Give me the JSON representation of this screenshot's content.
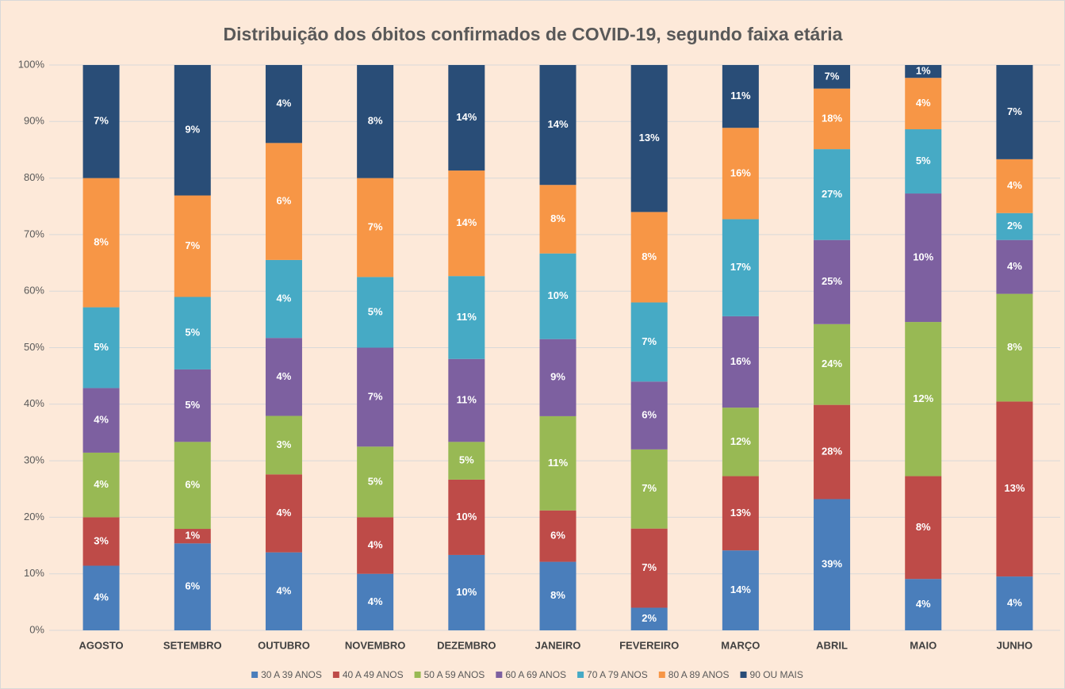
{
  "chart_data": {
    "type": "bar",
    "stacked": "percent",
    "title": "Distribuição dos óbitos confirmados de COVID-19, segundo faixa etária",
    "categories": [
      "AGOSTO",
      "SETEMBRO",
      "OUTUBRO",
      "NOVEMBRO",
      "DEZEMBRO",
      "JANEIRO",
      "FEVEREIRO",
      "MARÇO",
      "ABRIL",
      "MAIO",
      "JUNHO"
    ],
    "series": [
      {
        "name": "30 A 39 ANOS",
        "color": "#4a7ebb",
        "values": [
          4,
          6,
          4,
          4,
          10,
          8,
          2,
          14,
          39,
          4,
          4
        ],
        "value_labels": [
          "4%",
          "6%",
          "4%",
          "4%",
          "10%",
          "8%",
          "2%",
          "14%",
          "39%",
          "4%",
          "4%"
        ]
      },
      {
        "name": "40 A 49 ANOS",
        "color": "#be4b48",
        "values": [
          3,
          1,
          4,
          4,
          10,
          6,
          7,
          13,
          28,
          8,
          13
        ],
        "value_labels": [
          "3%",
          "1%",
          "4%",
          "4%",
          "10%",
          "6%",
          "7%",
          "13%",
          "28%",
          "8%",
          "13%"
        ]
      },
      {
        "name": "50 A 59 ANOS",
        "color": "#98b954",
        "values": [
          4,
          6,
          3,
          5,
          5,
          11,
          7,
          12,
          24,
          12,
          8
        ],
        "value_labels": [
          "4%",
          "6%",
          "3%",
          "5%",
          "5%",
          "11%",
          "7%",
          "12%",
          "24%",
          "12%",
          "8%"
        ]
      },
      {
        "name": "60 A 69 ANOS",
        "color": "#7d60a0",
        "values": [
          4,
          5,
          4,
          7,
          11,
          9,
          6,
          16,
          25,
          10,
          4
        ],
        "value_labels": [
          "4%",
          "5%",
          "4%",
          "7%",
          "11%",
          "9%",
          "6%",
          "16%",
          "25%",
          "10%",
          "4%"
        ]
      },
      {
        "name": "70 A 79 ANOS",
        "color": "#46aac5",
        "values": [
          5,
          5,
          4,
          5,
          11,
          10,
          7,
          17,
          27,
          5,
          2
        ],
        "value_labels": [
          "5%",
          "5%",
          "4%",
          "5%",
          "11%",
          "10%",
          "7%",
          "17%",
          "27%",
          "5%",
          "2%"
        ]
      },
      {
        "name": "80 A 89 ANOS",
        "color": "#f79646",
        "values": [
          8,
          7,
          6,
          7,
          14,
          8,
          8,
          16,
          18,
          4,
          4
        ],
        "value_labels": [
          "8%",
          "7%",
          "6%",
          "7%",
          "14%",
          "8%",
          "8%",
          "16%",
          "18%",
          "4%",
          "4%"
        ]
      },
      {
        "name": "90 OU MAIS",
        "color": "#294d77",
        "values": [
          7,
          9,
          4,
          8,
          14,
          14,
          13,
          11,
          7,
          1,
          7
        ],
        "value_labels": [
          "7%",
          "9%",
          "4%",
          "8%",
          "14%",
          "14%",
          "13%",
          "11%",
          "7%",
          "1%",
          "7%"
        ]
      }
    ],
    "ylim": [
      0,
      100
    ],
    "yticks": [
      {
        "value": 0,
        "label": "0%"
      },
      {
        "value": 10,
        "label": "10%"
      },
      {
        "value": 20,
        "label": "20%"
      },
      {
        "value": 30,
        "label": "30%"
      },
      {
        "value": 40,
        "label": "40%"
      },
      {
        "value": 50,
        "label": "50%"
      },
      {
        "value": 60,
        "label": "60%"
      },
      {
        "value": 70,
        "label": "70%"
      },
      {
        "value": 80,
        "label": "80%"
      },
      {
        "value": 90,
        "label": "90%"
      },
      {
        "value": 100,
        "label": "100%"
      }
    ],
    "grid": true,
    "legend": "bottom"
  }
}
